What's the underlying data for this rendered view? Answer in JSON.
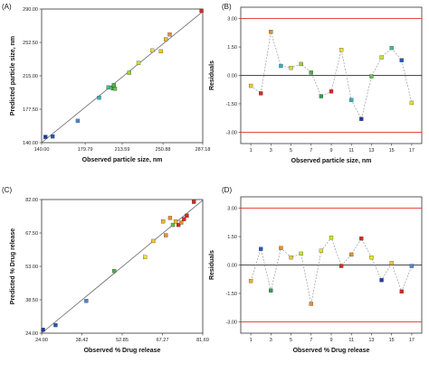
{
  "panels": [
    {
      "id": "A",
      "label": "(A)",
      "chart_data": {
        "type": "scatter",
        "xlabel": "Observed particle size, nm",
        "ylabel": "Predicted particle size, nm",
        "xlim": [
          140.0,
          287.18
        ],
        "ylim": [
          140.0,
          290.0
        ],
        "xticks": [
          140.0,
          179.79,
          213.59,
          250.88,
          287.18
        ],
        "xtick_labels": [
          "140.00",
          "179.79",
          "213.59",
          "250.88",
          "287.18"
        ],
        "yticks": [
          140.0,
          177.5,
          215.0,
          252.5,
          290.0
        ],
        "ytick_labels": [
          "140.00",
          "177.50",
          "215.00",
          "252.50",
          "290.00"
        ],
        "fit_line": [
          [
            140.0,
            140.0
          ],
          [
            287.18,
            287.18
          ]
        ],
        "points": [
          {
            "x": 143.5,
            "y": 146.5,
            "color": "#1f3aa8"
          },
          {
            "x": 150.0,
            "y": 147.0,
            "color": "#2656b8"
          },
          {
            "x": 173.0,
            "y": 164.5,
            "color": "#4a86d8"
          },
          {
            "x": 192.5,
            "y": 190.5,
            "color": "#35b0c0"
          },
          {
            "x": 201.0,
            "y": 202.0,
            "color": "#3cbf8a"
          },
          {
            "x": 205.0,
            "y": 201.0,
            "color": "#2e9e4a"
          },
          {
            "x": 206.0,
            "y": 204.5,
            "color": "#48b048"
          },
          {
            "x": 207.0,
            "y": 200.5,
            "color": "#67c04a"
          },
          {
            "x": 220.0,
            "y": 218.5,
            "color": "#9ccf3a"
          },
          {
            "x": 228.5,
            "y": 229.5,
            "color": "#cde036"
          },
          {
            "x": 241.0,
            "y": 243.5,
            "color": "#e8e230"
          },
          {
            "x": 249.0,
            "y": 242.5,
            "color": "#f0c830"
          },
          {
            "x": 253.5,
            "y": 256.0,
            "color": "#f2b428"
          },
          {
            "x": 257.0,
            "y": 261.5,
            "color": "#e8902a"
          },
          {
            "x": 286.0,
            "y": 288.0,
            "color": "#d42a1f"
          }
        ]
      }
    },
    {
      "id": "B",
      "label": "(B)",
      "chart_data": {
        "type": "line",
        "xlabel": "Observed particle size, nm",
        "ylabel": "Residuals",
        "xlim": [
          0,
          18
        ],
        "ylim": [
          -3.6,
          3.6
        ],
        "xticks": [
          1,
          3,
          5,
          7,
          9,
          11,
          13,
          15,
          17
        ],
        "xtick_labels": [
          "1",
          "3",
          "5",
          "7",
          "9",
          "11",
          "13",
          "15",
          "17"
        ],
        "yticks": [
          -3.0,
          -1.5,
          0.0,
          1.5,
          3.0
        ],
        "ytick_labels": [
          "-3.00",
          "-1.50",
          "0.00",
          "1.50",
          "3.00"
        ],
        "limits": [
          3.0,
          -3.0
        ],
        "x": [
          1,
          2,
          3,
          4,
          5,
          6,
          7,
          8,
          9,
          10,
          11,
          12,
          13,
          14,
          15,
          16,
          17
        ],
        "values": [
          -0.55,
          -0.95,
          2.3,
          0.5,
          0.4,
          0.6,
          0.15,
          -1.1,
          -0.85,
          1.35,
          -1.3,
          -2.3,
          -0.05,
          0.95,
          1.45,
          0.8,
          -1.45
        ],
        "colors": [
          "#f0c830",
          "#d42a1f",
          "#e8902a",
          "#35b0c0",
          "#cde036",
          "#9ccf3a",
          "#48b048",
          "#2e9e4a",
          "#d42a1f",
          "#e8e230",
          "#35b0c0",
          "#1f3aa8",
          "#67c04a",
          "#cde036",
          "#3cbf8a",
          "#2656b8",
          "#e8e230"
        ]
      }
    },
    {
      "id": "C",
      "label": "(C)",
      "chart_data": {
        "type": "scatter",
        "xlabel": "Observed % Drug release",
        "ylabel": "Predicted % Drug release",
        "xlim": [
          24.0,
          81.69
        ],
        "ylim": [
          24.0,
          82.0
        ],
        "xticks": [
          24.0,
          38.42,
          52.85,
          67.27,
          81.69
        ],
        "xtick_labels": [
          "24.00",
          "38.42",
          "52.85",
          "67.27",
          "81.69"
        ],
        "yticks": [
          24.0,
          38.5,
          53.0,
          67.5,
          82.0
        ],
        "ytick_labels": [
          "24.00",
          "38.50",
          "53.00",
          "67.50",
          "82.00"
        ],
        "fit_line": [
          [
            24.0,
            24.0
          ],
          [
            81.69,
            81.69
          ]
        ],
        "points": [
          {
            "x": 24.5,
            "y": 25.5,
            "color": "#1f3aa8"
          },
          {
            "x": 29.0,
            "y": 27.5,
            "color": "#2656b8"
          },
          {
            "x": 40.0,
            "y": 38.0,
            "color": "#4a86d8"
          },
          {
            "x": 50.0,
            "y": 51.0,
            "color": "#48b048"
          },
          {
            "x": 61.0,
            "y": 57.0,
            "color": "#e8e230"
          },
          {
            "x": 64.0,
            "y": 64.0,
            "color": "#f0c830"
          },
          {
            "x": 67.5,
            "y": 72.5,
            "color": "#f2b428"
          },
          {
            "x": 68.5,
            "y": 66.5,
            "color": "#e8902a"
          },
          {
            "x": 70.0,
            "y": 74.0,
            "color": "#e8902a"
          },
          {
            "x": 71.0,
            "y": 71.0,
            "color": "#67c04a"
          },
          {
            "x": 72.0,
            "y": 72.5,
            "color": "#f2b428"
          },
          {
            "x": 73.0,
            "y": 71.0,
            "color": "#d42a1f"
          },
          {
            "x": 74.0,
            "y": 72.0,
            "color": "#e8902a"
          },
          {
            "x": 75.0,
            "y": 73.5,
            "color": "#d42a1f"
          },
          {
            "x": 76.0,
            "y": 75.0,
            "color": "#d42a1f"
          },
          {
            "x": 78.5,
            "y": 81.0,
            "color": "#d42a1f"
          }
        ]
      }
    },
    {
      "id": "D",
      "label": "(D)",
      "chart_data": {
        "type": "line",
        "xlabel": "Observed % Drug release",
        "ylabel": "Residuals",
        "xlim": [
          0,
          18
        ],
        "ylim": [
          -3.6,
          3.6
        ],
        "xticks": [
          1,
          3,
          5,
          7,
          9,
          11,
          13,
          15,
          17
        ],
        "xtick_labels": [
          "1",
          "3",
          "5",
          "7",
          "9",
          "11",
          "13",
          "15",
          "17"
        ],
        "yticks": [
          -3.0,
          -1.5,
          0.0,
          1.5,
          3.0
        ],
        "ytick_labels": [
          "-3.00",
          "-1.50",
          "0.00",
          "1.50",
          "3.00"
        ],
        "limits": [
          3.0,
          -3.0
        ],
        "x": [
          1,
          2,
          3,
          4,
          5,
          6,
          7,
          8,
          9,
          10,
          11,
          12,
          13,
          14,
          15,
          16,
          17
        ],
        "values": [
          -0.85,
          0.85,
          -1.35,
          0.9,
          0.4,
          0.6,
          -2.05,
          0.75,
          1.45,
          -0.05,
          0.55,
          1.4,
          0.4,
          -0.8,
          0.1,
          -1.4,
          -0.05
        ],
        "colors": [
          "#f2b428",
          "#2656b8",
          "#2e9e4a",
          "#e8902a",
          "#f0c830",
          "#cde036",
          "#e8902a",
          "#e8e230",
          "#cde036",
          "#d42a1f",
          "#e8902a",
          "#d42a1f",
          "#e8e230",
          "#1f3aa8",
          "#f0c830",
          "#d42a1f",
          "#4a86d8"
        ]
      }
    }
  ]
}
